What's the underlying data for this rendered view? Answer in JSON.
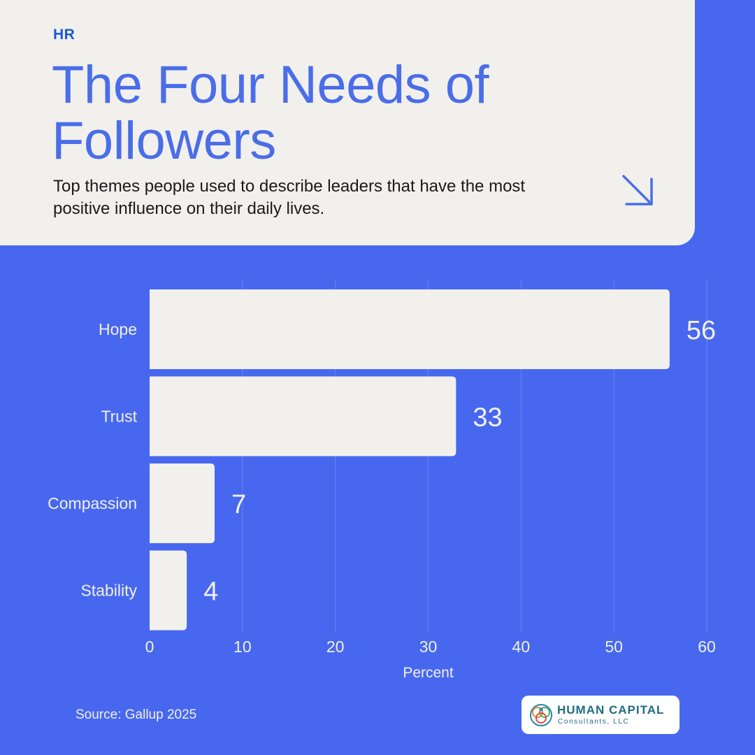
{
  "header": {
    "tag": "HR",
    "title": "The Four Needs of Followers",
    "subtitle": "Top themes people used to describe leaders that have the most positive influence on their daily lives.",
    "arrow_icon": "arrow-down-right-icon"
  },
  "chart_data": {
    "type": "bar",
    "orientation": "horizontal",
    "categories": [
      "Hope",
      "Trust",
      "Compassion",
      "Stability"
    ],
    "values": [
      56,
      33,
      7,
      4
    ],
    "xlabel": "Percent",
    "ylabel": "",
    "xlim": [
      0,
      60
    ],
    "xticks": [
      "0",
      "10",
      "20",
      "30",
      "40",
      "50",
      "60"
    ],
    "data_labels": [
      "56",
      "33",
      "7",
      "4"
    ],
    "grid": true,
    "legend": "none",
    "bar_color": "#f1f0ed",
    "background_color": "#4768ee"
  },
  "footer": {
    "source": "Source: Gallup 2025",
    "logo_name": "HUMAN CAPITAL",
    "logo_sub": "Consultants, LLC"
  },
  "colors": {
    "accent": "#4a6de8",
    "background": "#4768ee",
    "card": "#f1f0ed"
  }
}
